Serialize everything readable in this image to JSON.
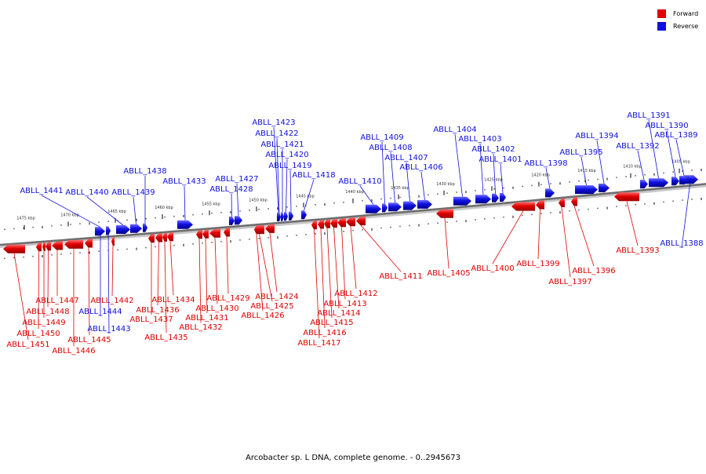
{
  "caption": "Arcobacter sp. L DNA, complete genome. - 0..2945673",
  "legend": {
    "forward": {
      "label": "Forward",
      "color": "#e00000"
    },
    "reverse": {
      "label": "Reverse",
      "color": "#1010e0"
    }
  },
  "kbp_ticks": [
    "1475 kbp",
    "1470 kbp",
    "1465 kbp",
    "1460 kbp",
    "1455 kbp",
    "1450 kbp",
    "1445 kbp",
    "1440 kbp",
    "1435 kbp",
    "1430 kbp",
    "1425 kbp",
    "1420 kbp",
    "1415 kbp",
    "1410 kbp",
    "1405 kbp"
  ],
  "genes_forward": [
    "ABLL_1393",
    "ABLL_1396",
    "ABLL_1397",
    "ABLL_1399",
    "ABLL_1400",
    "ABLL_1405",
    "ABLL_1411",
    "ABLL_1412",
    "ABLL_1413",
    "ABLL_1414",
    "ABLL_1415",
    "ABLL_1416",
    "ABLL_1417",
    "ABLL_1424",
    "ABLL_1425",
    "ABLL_1426",
    "ABLL_1429",
    "ABLL_1430",
    "ABLL_1431",
    "ABLL_1432",
    "ABLL_1434",
    "ABLL_1435",
    "ABLL_1436",
    "ABLL_1437",
    "ABLL_1442",
    "ABLL_1445",
    "ABLL_1446",
    "ABLL_1447",
    "ABLL_1448",
    "ABLL_1449",
    "ABLL_1450",
    "ABLL_1451"
  ],
  "genes_reverse": [
    "ABLL_1388",
    "ABLL_1389",
    "ABLL_1390",
    "ABLL_1391",
    "ABLL_1392",
    "ABLL_1394",
    "ABLL_1395",
    "ABLL_1398",
    "ABLL_1401",
    "ABLL_1402",
    "ABLL_1403",
    "ABLL_1404",
    "ABLL_1406",
    "ABLL_1407",
    "ABLL_1408",
    "ABLL_1409",
    "ABLL_1410",
    "ABLL_1418",
    "ABLL_1419",
    "ABLL_1420",
    "ABLL_1421",
    "ABLL_1422",
    "ABLL_1423",
    "ABLL_1427",
    "ABLL_1428",
    "ABLL_1433",
    "ABLL_1438",
    "ABLL_1439",
    "ABLL_1440",
    "ABLL_1441",
    "ABLL_1443",
    "ABLL_1444"
  ]
}
